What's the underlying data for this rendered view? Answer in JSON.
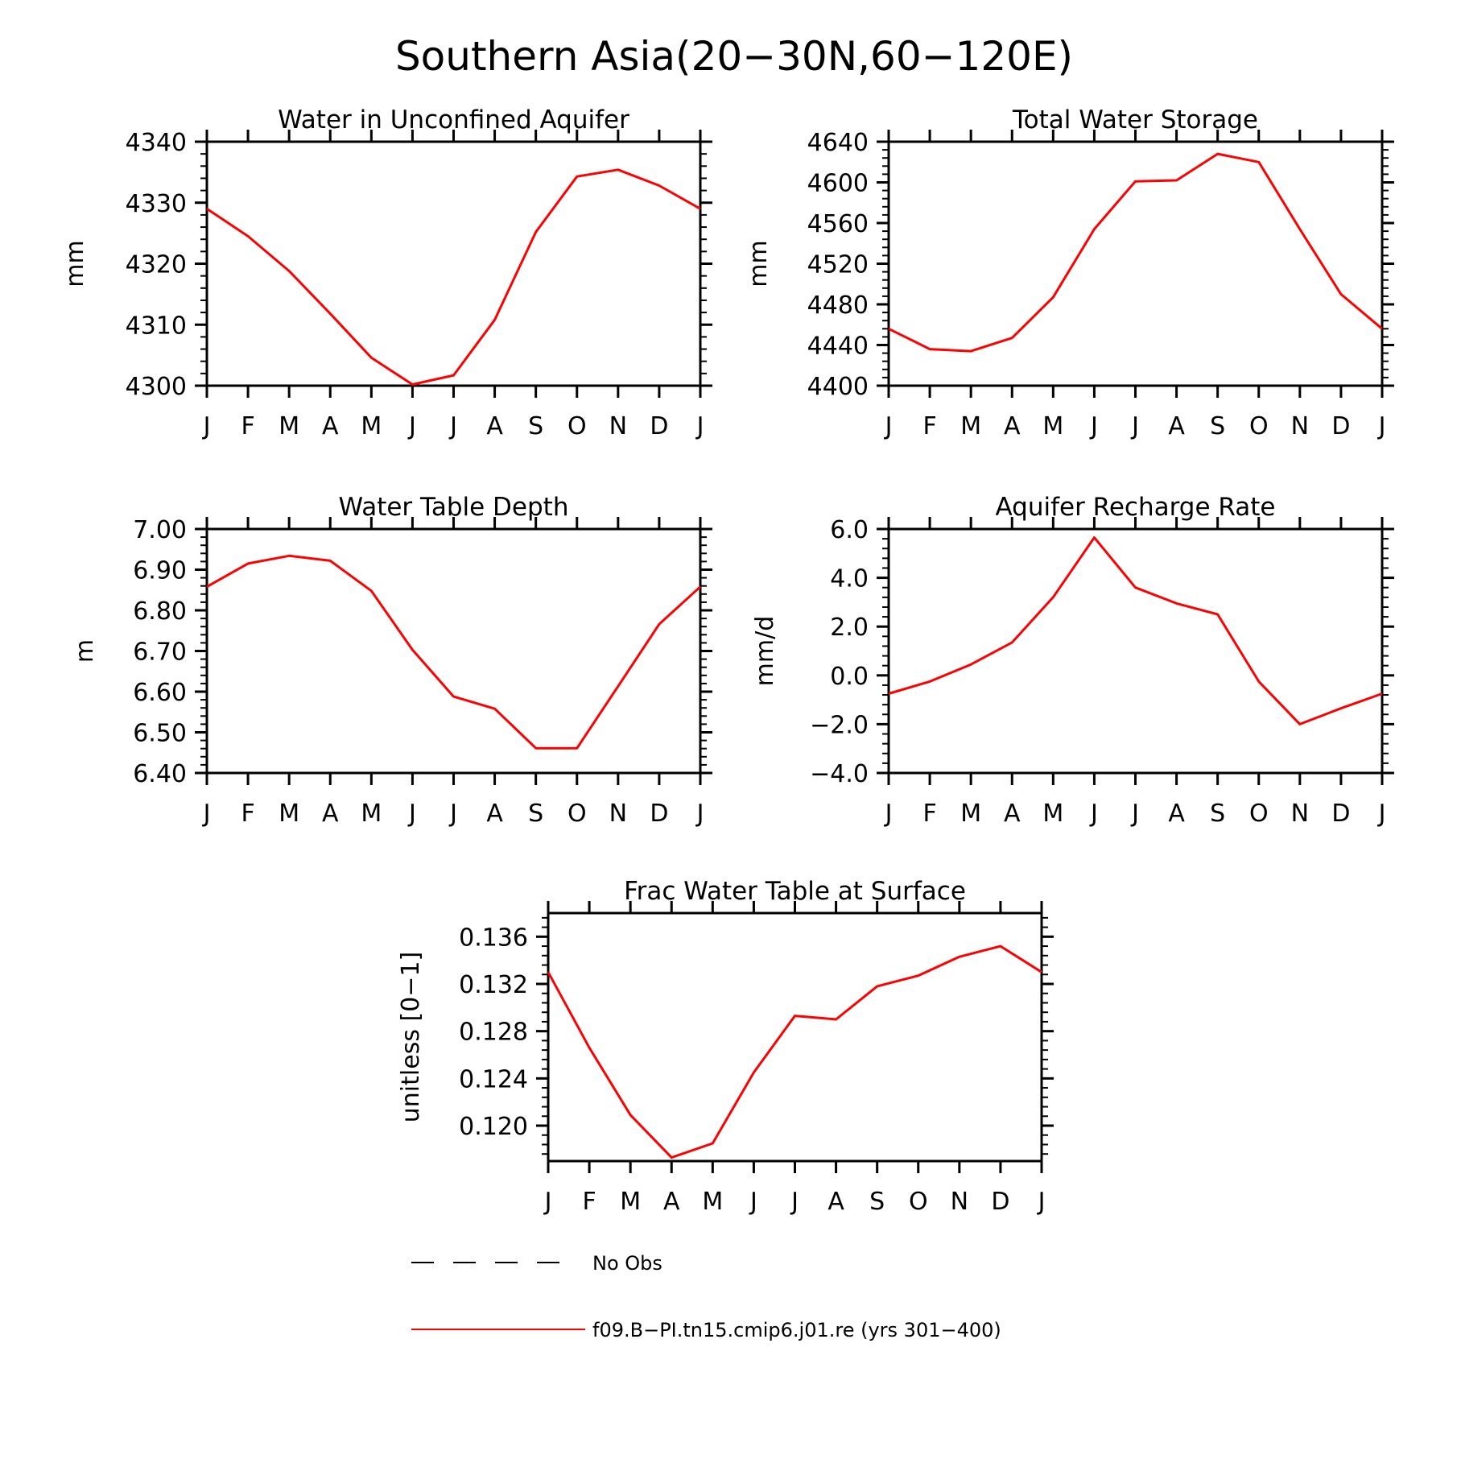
{
  "figure": {
    "title": "Southern Asia(20−30N,60−120E)",
    "month_labels": [
      "J",
      "F",
      "M",
      "A",
      "M",
      "J",
      "J",
      "A",
      "S",
      "O",
      "N",
      "D",
      "J"
    ],
    "line_color": "#ff0000"
  },
  "chart_data": [
    {
      "type": "line",
      "title": "Water in Unconfined Aquifer",
      "ylabel": "mm",
      "ylim": [
        4300,
        4340
      ],
      "yticks": [
        4300,
        4310,
        4320,
        4330,
        4340
      ],
      "ytick_labels": [
        "4300",
        "4310",
        "4320",
        "4330",
        "4340"
      ],
      "categories": [
        "J",
        "F",
        "M",
        "A",
        "M",
        "J",
        "J",
        "A",
        "S",
        "O",
        "N",
        "D",
        "J"
      ],
      "series": [
        {
          "name": "f09.B−PI.tn15.cmip6.j01.re (yrs 301−400)",
          "values": [
            4329.0,
            4324.5,
            4318.8,
            4311.8,
            4304.6,
            4300.2,
            4301.7,
            4310.8,
            4325.2,
            4334.3,
            4335.4,
            4332.8,
            4329.0
          ]
        }
      ]
    },
    {
      "type": "line",
      "title": "Total Water Storage",
      "ylabel": "mm",
      "ylim": [
        4400,
        4640
      ],
      "yticks": [
        4400,
        4440,
        4480,
        4520,
        4560,
        4600,
        4640
      ],
      "ytick_labels": [
        "4400",
        "4440",
        "4480",
        "4520",
        "4560",
        "4600",
        "4640"
      ],
      "categories": [
        "J",
        "F",
        "M",
        "A",
        "M",
        "J",
        "J",
        "A",
        "S",
        "O",
        "N",
        "D",
        "J"
      ],
      "series": [
        {
          "name": "f09.B−PI.tn15.cmip6.j01.re (yrs 301−400)",
          "values": [
            4456,
            4436,
            4434,
            4447,
            4487,
            4554,
            4601,
            4602,
            4628,
            4620,
            4554,
            4490,
            4456
          ]
        }
      ]
    },
    {
      "type": "line",
      "title": "Water Table Depth",
      "ylabel": "m",
      "ylim": [
        6.4,
        7.0
      ],
      "yticks": [
        6.4,
        6.5,
        6.6,
        6.7,
        6.8,
        6.9,
        7.0
      ],
      "ytick_labels": [
        "6.40",
        "6.50",
        "6.60",
        "6.70",
        "6.80",
        "6.90",
        "7.00"
      ],
      "categories": [
        "J",
        "F",
        "M",
        "A",
        "M",
        "J",
        "J",
        "A",
        "S",
        "O",
        "N",
        "D",
        "J"
      ],
      "series": [
        {
          "name": "f09.B−PI.tn15.cmip6.j01.re (yrs 301−400)",
          "values": [
            6.858,
            6.915,
            6.934,
            6.922,
            6.848,
            6.703,
            6.588,
            6.558,
            6.461,
            6.461,
            6.613,
            6.766,
            6.858
          ]
        }
      ]
    },
    {
      "type": "line",
      "title": "Aquifer Recharge Rate",
      "ylabel": "mm/d",
      "ylim": [
        -4.0,
        6.0
      ],
      "yticks": [
        -4.0,
        -2.0,
        0.0,
        2.0,
        4.0,
        6.0
      ],
      "ytick_labels": [
        "−4.0",
        "−2.0",
        "0.0",
        "2.0",
        "4.0",
        "6.0"
      ],
      "categories": [
        "J",
        "F",
        "M",
        "A",
        "M",
        "J",
        "J",
        "A",
        "S",
        "O",
        "N",
        "D",
        "J"
      ],
      "series": [
        {
          "name": "f09.B−PI.tn15.cmip6.j01.re (yrs 301−400)",
          "values": [
            -0.75,
            -0.25,
            0.45,
            1.35,
            3.2,
            5.65,
            3.6,
            2.95,
            2.5,
            -0.25,
            -2.0,
            -1.35,
            -0.75
          ]
        }
      ]
    },
    {
      "type": "line",
      "title": "Frac Water Table at Surface",
      "ylabel": "unitless [0−1]",
      "ylim": [
        0.117,
        0.138
      ],
      "yticks": [
        0.12,
        0.124,
        0.128,
        0.132,
        0.136
      ],
      "ytick_labels": [
        "0.120",
        "0.124",
        "0.128",
        "0.132",
        "0.136"
      ],
      "categories": [
        "J",
        "F",
        "M",
        "A",
        "M",
        "J",
        "J",
        "A",
        "S",
        "O",
        "N",
        "D",
        "J"
      ],
      "series": [
        {
          "name": "f09.B−PI.tn15.cmip6.j01.re (yrs 301−400)",
          "values": [
            0.133,
            0.1266,
            0.1209,
            0.1173,
            0.1185,
            0.1245,
            0.1293,
            0.129,
            0.1318,
            0.1327,
            0.1343,
            0.1352,
            0.133
          ]
        }
      ]
    }
  ],
  "legend": {
    "items": [
      {
        "label": "No Obs",
        "style": "dashed",
        "color": "#000000"
      },
      {
        "label": "f09.B−PI.tn15.cmip6.j01.re (yrs 301−400)",
        "style": "solid",
        "color": "#ff0000"
      }
    ]
  }
}
